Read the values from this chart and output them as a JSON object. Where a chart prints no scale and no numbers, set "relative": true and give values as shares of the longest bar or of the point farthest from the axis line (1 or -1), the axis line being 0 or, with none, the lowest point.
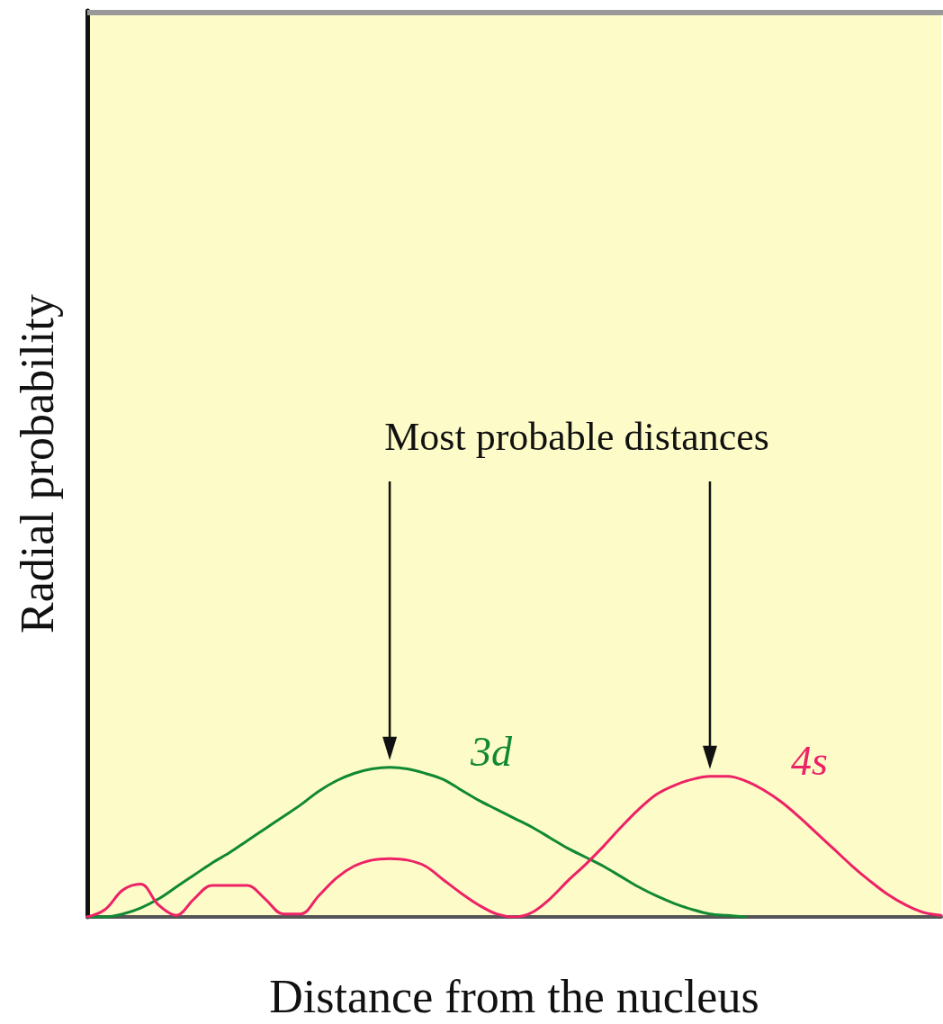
{
  "chart_data": {
    "type": "line",
    "relative": true,
    "xlabel": "Distance from the nucleus",
    "ylabel": "Radial probability",
    "annotations": [
      "Most probable distances"
    ],
    "marker": "none",
    "line_style": "solid",
    "categories": [
      null,
      null,
      null,
      null,
      null,
      null,
      null,
      null,
      null,
      null,
      null,
      null,
      null,
      null,
      null,
      null,
      null,
      null,
      null,
      null,
      null,
      null,
      null,
      null,
      null,
      null,
      null,
      null,
      null,
      null,
      null,
      null,
      null,
      null,
      null,
      null,
      null,
      null,
      null,
      null,
      null,
      null,
      null,
      null,
      null,
      null,
      null,
      null,
      null
    ],
    "series": [
      {
        "name": "3d",
        "color": "#118833",
        "values": [
          0,
          0,
          0.02,
          0.06,
          0.12,
          0.2,
          0.28,
          0.36,
          0.43,
          0.51,
          0.59,
          0.67,
          0.75,
          0.84,
          0.91,
          0.96,
          0.99,
          1,
          0.99,
          0.96,
          0.92,
          0.85,
          0.78,
          0.72,
          0.66,
          0.6,
          0.53,
          0.46,
          0.4,
          0.34,
          0.27,
          0.2,
          0.14,
          0.09,
          0.05,
          0.02,
          0.01,
          0,
          null,
          null,
          null,
          null,
          null,
          null,
          null,
          null,
          null,
          null,
          null
        ]
      },
      {
        "name": "4s",
        "color": "#ee2266",
        "values": [
          0,
          0.05,
          0.18,
          0.22,
          0.08,
          0.01,
          0.12,
          0.21,
          0.21,
          0.21,
          0.12,
          0.02,
          0.02,
          0.14,
          0.26,
          0.34,
          0.38,
          0.39,
          0.38,
          0.34,
          0.25,
          0.16,
          0.08,
          0.02,
          0,
          0.03,
          0.12,
          0.24,
          0.35,
          0.47,
          0.6,
          0.72,
          0.82,
          0.88,
          0.92,
          0.94,
          0.94,
          0.91,
          0.85,
          0.77,
          0.67,
          0.56,
          0.45,
          0.34,
          0.24,
          0.15,
          0.08,
          0.03,
          0.01
        ]
      }
    ]
  }
}
